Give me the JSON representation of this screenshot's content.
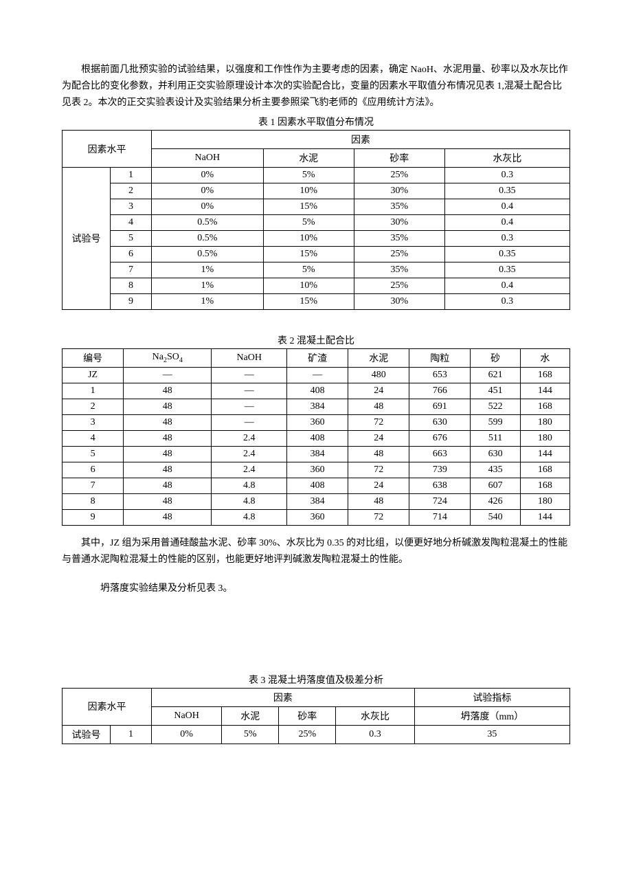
{
  "intro_paragraph": "根据前面几批预实验的试验结果，以强度和工作性作为主要考虑的因素，确定 NaoH、水泥用量、砂率以及水灰比作为配合比的变化参数，并利用正交实验原理设计本次的实验配合比，变量的因素水平取值分布情况见表 1,混凝土配合比见表 2。本次的正交实验表设计及实验结果分析主要参照梁飞豹老师的《应用统计方法》。",
  "table1": {
    "title": "表 1 因素水平取值分布情况",
    "header_group_left": "因素水平",
    "header_group_right": "因素",
    "cols": [
      "NaOH",
      "水泥",
      "砂率",
      "水灰比"
    ],
    "row_label": "试验号",
    "rows": [
      {
        "n": "1",
        "naoh": "0%",
        "cement": "5%",
        "sand": "25%",
        "wc": "0.3"
      },
      {
        "n": "2",
        "naoh": "0%",
        "cement": "10%",
        "sand": "30%",
        "wc": "0.35"
      },
      {
        "n": "3",
        "naoh": "0%",
        "cement": "15%",
        "sand": "35%",
        "wc": "0.4"
      },
      {
        "n": "4",
        "naoh": "0.5%",
        "cement": "5%",
        "sand": "30%",
        "wc": "0.4"
      },
      {
        "n": "5",
        "naoh": "0.5%",
        "cement": "10%",
        "sand": "35%",
        "wc": "0.3"
      },
      {
        "n": "6",
        "naoh": "0.5%",
        "cement": "15%",
        "sand": "25%",
        "wc": "0.35"
      },
      {
        "n": "7",
        "naoh": "1%",
        "cement": "5%",
        "sand": "35%",
        "wc": "0.35"
      },
      {
        "n": "8",
        "naoh": "1%",
        "cement": "10%",
        "sand": "25%",
        "wc": "0.4"
      },
      {
        "n": "9",
        "naoh": "1%",
        "cement": "15%",
        "sand": "30%",
        "wc": "0.3"
      }
    ]
  },
  "table2": {
    "title": "表 2 混凝土配合比",
    "cols_plain": [
      "编号",
      "",
      "NaOH",
      "矿渣",
      "水泥",
      "陶粒",
      "砂",
      "水"
    ],
    "na2so4_label_pre": "Na",
    "na2so4_label_sub1": "2",
    "na2so4_label_mid": "SO",
    "na2so4_label_sub2": "4",
    "rows": [
      {
        "id": "JZ",
        "na2so4": "—",
        "naoh": "—",
        "slag": "—",
        "cement": "480",
        "ceramic": "653",
        "sand": "621",
        "water": "168"
      },
      {
        "id": "1",
        "na2so4": "48",
        "naoh": "—",
        "slag": "408",
        "cement": "24",
        "ceramic": "766",
        "sand": "451",
        "water": "144"
      },
      {
        "id": "2",
        "na2so4": "48",
        "naoh": "—",
        "slag": "384",
        "cement": "48",
        "ceramic": "691",
        "sand": "522",
        "water": "168"
      },
      {
        "id": "3",
        "na2so4": "48",
        "naoh": "—",
        "slag": "360",
        "cement": "72",
        "ceramic": "630",
        "sand": "599",
        "water": "180"
      },
      {
        "id": "4",
        "na2so4": "48",
        "naoh": "2.4",
        "slag": "408",
        "cement": "24",
        "ceramic": "676",
        "sand": "511",
        "water": "180"
      },
      {
        "id": "5",
        "na2so4": "48",
        "naoh": "2.4",
        "slag": "384",
        "cement": "48",
        "ceramic": "663",
        "sand": "630",
        "water": "144"
      },
      {
        "id": "6",
        "na2so4": "48",
        "naoh": "2.4",
        "slag": "360",
        "cement": "72",
        "ceramic": "739",
        "sand": "435",
        "water": "168"
      },
      {
        "id": "7",
        "na2so4": "48",
        "naoh": "4.8",
        "slag": "408",
        "cement": "24",
        "ceramic": "638",
        "sand": "607",
        "water": "168"
      },
      {
        "id": "8",
        "na2so4": "48",
        "naoh": "4.8",
        "slag": "384",
        "cement": "48",
        "ceramic": "724",
        "sand": "426",
        "water": "180"
      },
      {
        "id": "9",
        "na2so4": "48",
        "naoh": "4.8",
        "slag": "360",
        "cement": "72",
        "ceramic": "714",
        "sand": "540",
        "water": "144"
      }
    ]
  },
  "middle_para": "其中，JZ 组为采用普通硅酸盐水泥、砂率 30%、水灰比为 0.35 的对比组，以便更好地分析碱激发陶粒混凝土的性能与普通水泥陶粒混凝土的性能的区别，也能更好地评判碱激发陶粒混凝土的性能。",
  "slump_para": "坍落度实验结果及分析见表 3。",
  "table3": {
    "title": "表 3 混凝土坍落度值及极差分析",
    "header_group_left": "因素水平",
    "header_factors": "因素",
    "header_indicator": "试验指标",
    "cols": [
      "NaOH",
      "水泥",
      "砂率",
      "水灰比"
    ],
    "indicator_col": "坍落度（mm）",
    "row_label": "试验号",
    "rows": [
      {
        "n": "1",
        "naoh": "0%",
        "cement": "5%",
        "sand": "25%",
        "wc": "0.3",
        "slump": "35"
      }
    ]
  }
}
